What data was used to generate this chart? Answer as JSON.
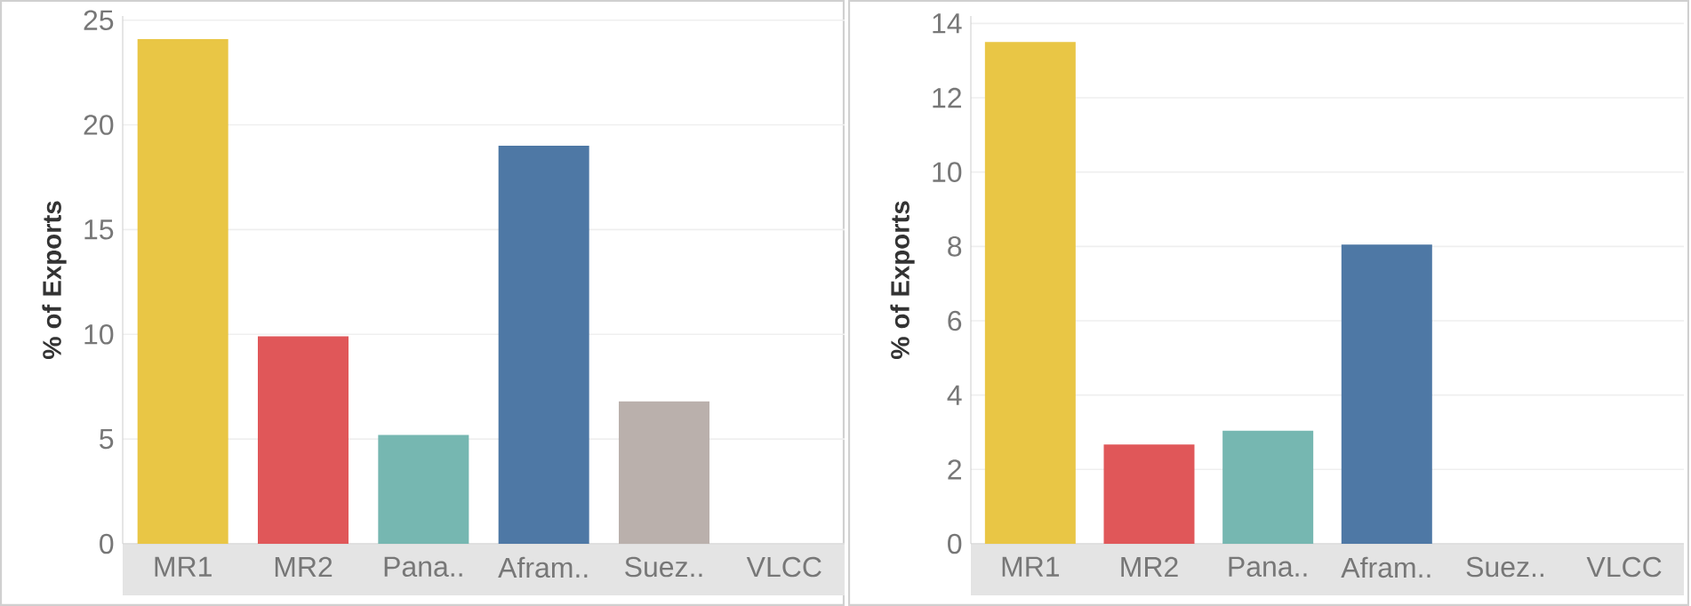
{
  "chart_data": [
    {
      "type": "bar",
      "ylabel": "% of Exports",
      "categories": [
        "MR1",
        "MR2",
        "Pana..",
        "Afram..",
        "Suez..",
        "VLCC"
      ],
      "values": [
        24.1,
        9.9,
        5.2,
        19.0,
        6.8,
        0
      ],
      "colors": [
        "#e9c645",
        "#e05759",
        "#76b7b1",
        "#4e78a5",
        "#bab0ac",
        "#bab0ac"
      ],
      "ylim": [
        0,
        25.2
      ],
      "yticks": [
        0,
        5,
        10,
        15,
        20,
        25
      ],
      "grid": "y"
    },
    {
      "type": "bar",
      "ylabel": "% of Exports",
      "categories": [
        "MR1",
        "MR2",
        "Pana..",
        "Afram..",
        "Suez..",
        "VLCC"
      ],
      "values": [
        13.5,
        2.67,
        3.04,
        8.05,
        0,
        0
      ],
      "colors": [
        "#e9c645",
        "#e05759",
        "#76b7b1",
        "#4e78a5",
        "#bab0ac",
        "#bab0ac"
      ],
      "ylim": [
        0,
        14.2
      ],
      "yticks": [
        0,
        2,
        4,
        6,
        8,
        10,
        12,
        14
      ],
      "grid": "y"
    }
  ]
}
